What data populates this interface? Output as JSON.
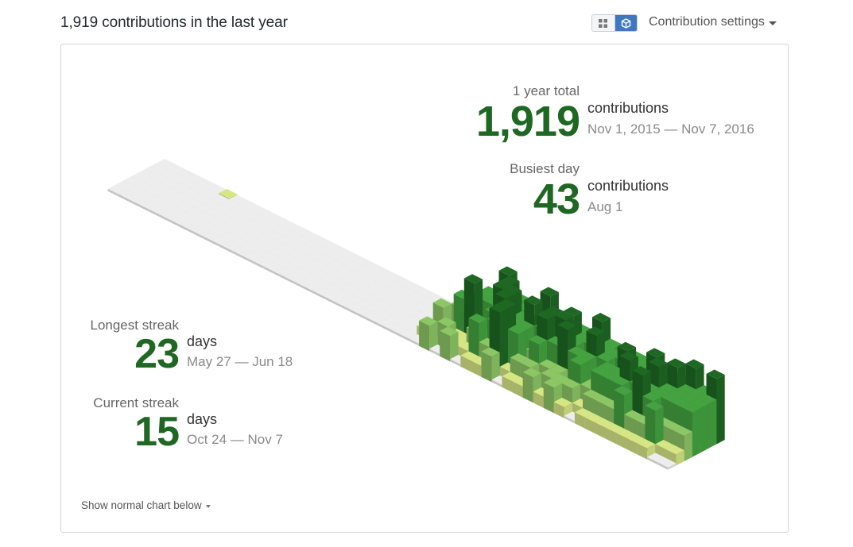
{
  "header": {
    "title": "1,919 contributions in the last year"
  },
  "toggle": {
    "grid_icon": "grid-icon",
    "cube_icon": "cube-icon",
    "active": "cube"
  },
  "settings": {
    "label": "Contribution settings",
    "icon": "caret-down-icon"
  },
  "colors": {
    "level0": "#e3e3e3",
    "level1": "#d6e685",
    "level2": "#8cc665",
    "level3": "#44a340",
    "level4": "#1e6823",
    "stat_number": "#1e6823"
  },
  "stats": {
    "total": {
      "label": "1 year total",
      "value": "1,919",
      "unit": "contributions",
      "range": "Nov 1, 2015 — Nov 7, 2016"
    },
    "busiest": {
      "label": "Busiest day",
      "value": "43",
      "unit": "contributions",
      "range": "Aug 1"
    },
    "longest": {
      "label": "Longest streak",
      "value": "23",
      "unit": "days",
      "range": "May 27 — Jun 18"
    },
    "current": {
      "label": "Current streak",
      "value": "15",
      "unit": "days",
      "range": "Oct 24 — Nov 7"
    }
  },
  "footer": {
    "show_normal_label": "Show normal chart below"
  },
  "chart_data": {
    "type": "isometric-contribution-calendar",
    "weeks": 54,
    "days_per_week": 7,
    "quiet_weeks": 29,
    "active_weeks": 25,
    "max_value": 43,
    "total": 1919,
    "highlight": {
      "week": 6,
      "day": 0,
      "level": 1
    },
    "active_levels": [
      [
        0,
        1,
        0,
        2,
        0,
        1,
        0
      ],
      [
        1,
        2,
        2,
        0,
        1,
        0,
        2
      ],
      [
        1,
        1,
        2,
        3,
        1,
        2,
        0
      ],
      [
        2,
        3,
        3,
        4,
        1,
        1,
        2
      ],
      [
        4,
        3,
        3,
        2,
        2,
        1,
        0
      ],
      [
        3,
        4,
        4,
        3,
        2,
        3,
        1
      ],
      [
        2,
        3,
        4,
        4,
        3,
        2,
        1
      ],
      [
        1,
        2,
        3,
        3,
        4,
        4,
        2
      ],
      [
        4,
        3,
        4,
        3,
        3,
        1,
        0
      ],
      [
        2,
        3,
        3,
        2,
        1,
        2,
        1
      ],
      [
        3,
        3,
        4,
        4,
        3,
        2,
        1
      ],
      [
        3,
        4,
        4,
        3,
        2,
        1,
        2
      ],
      [
        3,
        3,
        3,
        4,
        2,
        2,
        1
      ],
      [
        4,
        3,
        2,
        3,
        1,
        2,
        2
      ],
      [
        3,
        3,
        4,
        3,
        3,
        2,
        1
      ],
      [
        2,
        3,
        3,
        2,
        2,
        1,
        0
      ],
      [
        3,
        3,
        2,
        3,
        3,
        2,
        1
      ],
      [
        3,
        3,
        4,
        3,
        3,
        2,
        1
      ],
      [
        2,
        3,
        3,
        4,
        3,
        2,
        1
      ],
      [
        3,
        4,
        3,
        3,
        2,
        3,
        1
      ],
      [
        3,
        3,
        4,
        3,
        4,
        2,
        1
      ],
      [
        3,
        4,
        3,
        3,
        3,
        2,
        1
      ],
      [
        4,
        3,
        3,
        3,
        2,
        3,
        1
      ],
      [
        3,
        3,
        3,
        3,
        2,
        1,
        0
      ],
      [
        4,
        3,
        3,
        3,
        2,
        1,
        0
      ]
    ]
  }
}
